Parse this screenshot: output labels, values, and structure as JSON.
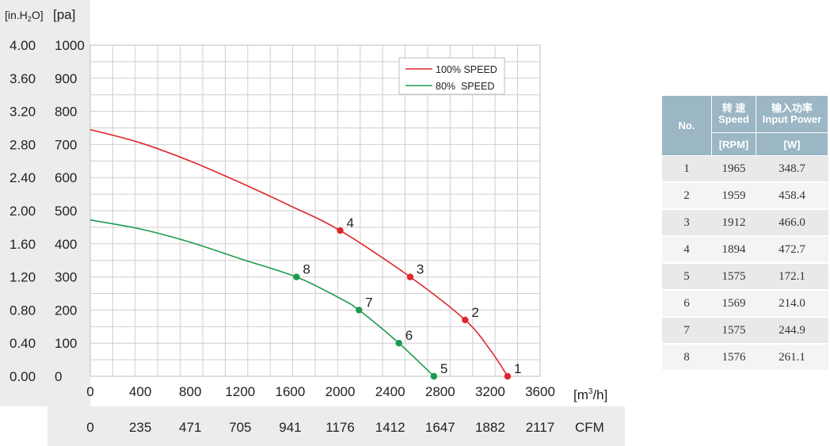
{
  "chart_data": {
    "type": "line",
    "y_unit_left": "[in.H",
    "y_unit_left_sub": "2",
    "y_unit_left_end": "O]",
    "y_unit_right": "[pa]",
    "y_ticks_inh2o": [
      "4.00",
      "3.60",
      "3.20",
      "2.80",
      "2.40",
      "2.00",
      "1.60",
      "1.20",
      "0.80",
      "0.40",
      "0.00"
    ],
    "y_ticks_pa": [
      "1000",
      "900",
      "800",
      "700",
      "600",
      "500",
      "400",
      "300",
      "200",
      "100",
      "0"
    ],
    "ylim": [
      0,
      1000
    ],
    "xlim": [
      0,
      3600
    ],
    "x_ticks_m3h": [
      "0",
      "400",
      "800",
      "1200",
      "1600",
      "2000",
      "2400",
      "2800",
      "3200",
      "3600"
    ],
    "x_ticks_cfm": [
      "0",
      "235",
      "471",
      "705",
      "941",
      "1176",
      "1412",
      "1647",
      "1882",
      "2117"
    ],
    "x_unit_m3h": "[m",
    "x_unit_m3h_sup": "3",
    "x_unit_m3h_end": "/h]",
    "x_unit_cfm": "CFM",
    "grid": true,
    "legend_position": "top-right",
    "series": [
      {
        "name": "100% SPEED",
        "color": "#e0262b",
        "x": [
          0,
          400,
          800,
          1200,
          1600,
          2000,
          2560,
          3000,
          3200,
          3340
        ],
        "y": [
          745,
          705,
          650,
          585,
          515,
          440,
          300,
          170,
          80,
          0
        ],
        "points": [
          {
            "label": "4",
            "x": 2000,
            "y": 440
          },
          {
            "label": "3",
            "x": 2560,
            "y": 300
          },
          {
            "label": "2",
            "x": 3000,
            "y": 170
          },
          {
            "label": "1",
            "x": 3340,
            "y": 0
          }
        ]
      },
      {
        "name": "80%  SPEED",
        "color": "#1a9a4e",
        "x": [
          0,
          400,
          800,
          1200,
          1650,
          2000,
          2150,
          2470,
          2750
        ],
        "y": [
          472,
          445,
          405,
          355,
          300,
          235,
          200,
          100,
          0
        ],
        "points": [
          {
            "label": "8",
            "x": 1650,
            "y": 300
          },
          {
            "label": "7",
            "x": 2150,
            "y": 200
          },
          {
            "label": "6",
            "x": 2470,
            "y": 100
          },
          {
            "label": "5",
            "x": 2750,
            "y": 0
          }
        ]
      }
    ]
  },
  "table": {
    "header_no": "No.",
    "header_speed_cn": "转 速",
    "header_speed_en": "Speed",
    "header_power_cn": "输入功率",
    "header_power_en": "Input Power",
    "unit_speed": "[RPM]",
    "unit_power": "[W]",
    "rows": [
      {
        "no": "1",
        "speed": "1965",
        "power": "348.7"
      },
      {
        "no": "2",
        "speed": "1959",
        "power": "458.4"
      },
      {
        "no": "3",
        "speed": "1912",
        "power": "466.0"
      },
      {
        "no": "4",
        "speed": "1894",
        "power": "472.7"
      },
      {
        "no": "5",
        "speed": "1575",
        "power": "172.1"
      },
      {
        "no": "6",
        "speed": "1569",
        "power": "214.0"
      },
      {
        "no": "7",
        "speed": "1575",
        "power": "244.9"
      },
      {
        "no": "8",
        "speed": "1576",
        "power": "261.1"
      }
    ]
  }
}
